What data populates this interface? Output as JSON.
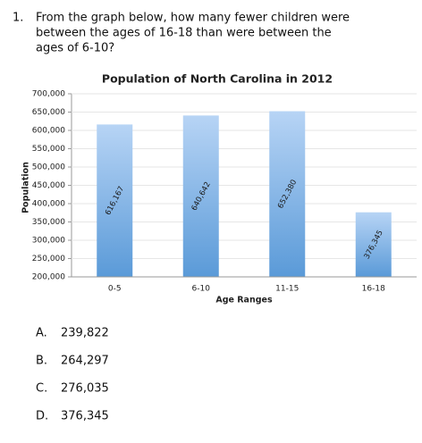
{
  "question": {
    "number": "1.",
    "lines": [
      "From the graph below, how many fewer children were",
      "between the ages of 16-18 than were between the",
      "ages of 6-10?"
    ]
  },
  "chart_data": {
    "type": "bar",
    "title": "Population of North Carolina in 2012",
    "x_label": "Age Ranges",
    "y_label": "Population",
    "categories": [
      "0-5",
      "6-10",
      "11-15",
      "16-18"
    ],
    "values": [
      616167,
      640642,
      652380,
      376345
    ],
    "value_labels": [
      "616,167",
      "640,642",
      "652,380",
      "376,345"
    ],
    "ylim": [
      200000,
      700000
    ],
    "yticks": [
      {
        "value": 200000,
        "label": "200,000"
      },
      {
        "value": 250000,
        "label": "250,000"
      },
      {
        "value": 300000,
        "label": "300,000"
      },
      {
        "value": 350000,
        "label": "350,000"
      },
      {
        "value": 400000,
        "label": "400,000"
      },
      {
        "value": 450000,
        "label": "450,000"
      },
      {
        "value": 500000,
        "label": "500,000"
      },
      {
        "value": 550000,
        "label": "550,000"
      },
      {
        "value": 600000,
        "label": "600,000"
      },
      {
        "value": 650000,
        "label": "650,000"
      },
      {
        "value": 700000,
        "label": "700,000"
      }
    ],
    "grid": true
  },
  "choices": [
    {
      "letter": "A.",
      "text": "239,822"
    },
    {
      "letter": "B.",
      "text": "264,297"
    },
    {
      "letter": "C.",
      "text": "276,035"
    },
    {
      "letter": "D.",
      "text": "376,345"
    }
  ]
}
